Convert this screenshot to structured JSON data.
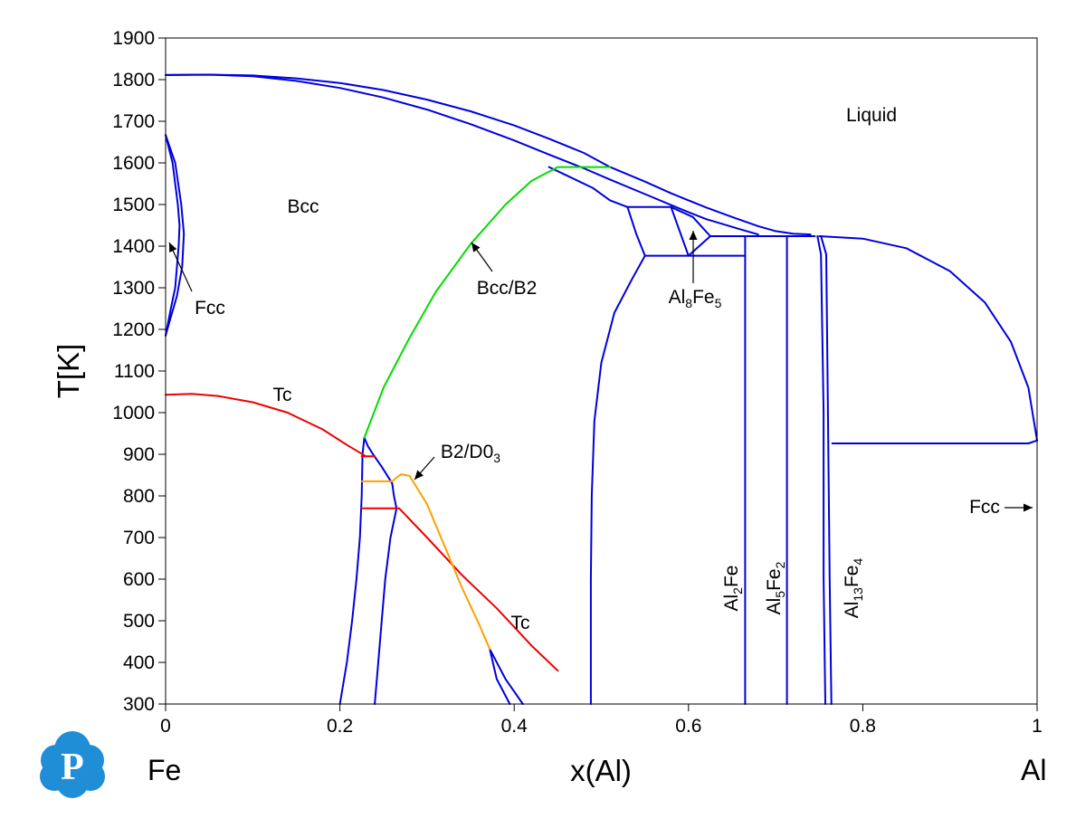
{
  "chart_data": {
    "type": "line",
    "title": "",
    "xlabel": "x(Al)",
    "ylabel": "T[K]",
    "xlim": [
      0,
      1
    ],
    "ylim": [
      300,
      1900
    ],
    "x_ticks": [
      "0",
      "0.2",
      "0.4",
      "0.6",
      "0.8",
      "1"
    ],
    "y_ticks": [
      "300",
      "400",
      "500",
      "600",
      "700",
      "800",
      "900",
      "1000",
      "1100",
      "1200",
      "1300",
      "1400",
      "1500",
      "1600",
      "1700",
      "1800",
      "1900"
    ],
    "x_end_labels": {
      "left": "Fe",
      "right": "Al"
    },
    "grid": false,
    "colors": {
      "phase_boundary": "#0000dd",
      "curie": "#ee0000",
      "bcc_b2": "#00dd00",
      "b2_d03": "#ffa000",
      "axis": "#000000"
    },
    "annotations": [
      {
        "id": "liquid",
        "text": "Liquid"
      },
      {
        "id": "bcc",
        "text": "Bcc"
      },
      {
        "id": "fcc-left",
        "text": "Fcc"
      },
      {
        "id": "bcc-b2",
        "text": "Bcc/B2"
      },
      {
        "id": "tc-upper",
        "text": "Tc"
      },
      {
        "id": "tc-lower",
        "text": "Tc"
      },
      {
        "id": "b2-d03",
        "text": "B2/D0",
        "sub": "3"
      },
      {
        "id": "al8fe5",
        "parts": [
          [
            "Al",
            ""
          ],
          [
            "8",
            "sub"
          ],
          [
            "Fe",
            ""
          ],
          [
            "5",
            "sub"
          ]
        ]
      },
      {
        "id": "al2fe",
        "parts": [
          [
            "Al",
            ""
          ],
          [
            "2",
            "sub"
          ],
          [
            "Fe",
            ""
          ]
        ]
      },
      {
        "id": "al5fe2",
        "parts": [
          [
            "Al",
            ""
          ],
          [
            "5",
            "sub"
          ],
          [
            "Fe",
            ""
          ],
          [
            "2",
            "sub"
          ]
        ]
      },
      {
        "id": "al13fe4",
        "parts": [
          [
            "Al",
            ""
          ],
          [
            "13",
            "sub"
          ],
          [
            "Fe",
            ""
          ],
          [
            "4",
            "sub"
          ]
        ]
      },
      {
        "id": "fcc-right",
        "text": "Fcc"
      }
    ],
    "series": [
      {
        "color": "phase_boundary",
        "points": [
          [
            0,
            1811
          ],
          [
            0.05,
            1812
          ],
          [
            0.1,
            1808
          ],
          [
            0.15,
            1797
          ],
          [
            0.2,
            1780
          ],
          [
            0.25,
            1757
          ],
          [
            0.3,
            1728
          ],
          [
            0.35,
            1693
          ],
          [
            0.4,
            1654
          ],
          [
            0.44,
            1620
          ],
          [
            0.48,
            1587
          ],
          [
            0.51,
            1560
          ],
          [
            0.55,
            1525
          ],
          [
            0.59,
            1490
          ],
          [
            0.62,
            1465
          ],
          [
            0.66,
            1440
          ],
          [
            0.68,
            1428
          ]
        ]
      },
      {
        "color": "phase_boundary",
        "points": [
          [
            0,
            1811
          ],
          [
            0.05,
            1812
          ],
          [
            0.1,
            1810
          ],
          [
            0.15,
            1803
          ],
          [
            0.2,
            1792
          ],
          [
            0.25,
            1775
          ],
          [
            0.3,
            1752
          ],
          [
            0.35,
            1724
          ],
          [
            0.4,
            1690
          ],
          [
            0.44,
            1658
          ],
          [
            0.48,
            1624
          ],
          [
            0.51,
            1590
          ],
          [
            0.55,
            1555
          ],
          [
            0.58,
            1527
          ],
          [
            0.6,
            1510
          ],
          [
            0.62,
            1493
          ],
          [
            0.65,
            1470
          ],
          [
            0.68,
            1448
          ],
          [
            0.7,
            1436
          ],
          [
            0.72,
            1430
          ],
          [
            0.74,
            1428
          ]
        ]
      },
      {
        "color": "phase_boundary",
        "points": [
          [
            0.75,
            1424
          ],
          [
            0.8,
            1418
          ],
          [
            0.85,
            1395
          ],
          [
            0.9,
            1340
          ],
          [
            0.94,
            1265
          ],
          [
            0.97,
            1170
          ],
          [
            0.99,
            1060
          ],
          [
            1.0,
            933
          ]
        ]
      },
      {
        "color": "phase_boundary",
        "points": [
          [
            0.44,
            1590
          ],
          [
            0.46,
            1570
          ],
          [
            0.49,
            1540
          ],
          [
            0.51,
            1510
          ],
          [
            0.53,
            1494
          ]
        ]
      },
      {
        "color": "phase_boundary",
        "points": [
          [
            0.53,
            1494
          ],
          [
            0.58,
            1494
          ]
        ]
      },
      {
        "color": "phase_boundary",
        "points": [
          [
            0.53,
            1494
          ],
          [
            0.54,
            1430
          ],
          [
            0.55,
            1377
          ]
        ]
      },
      {
        "color": "phase_boundary",
        "points": [
          [
            0.55,
            1377
          ],
          [
            0.665,
            1377
          ]
        ]
      },
      {
        "color": "phase_boundary",
        "points": [
          [
            0.58,
            1494
          ],
          [
            0.6,
            1377
          ]
        ]
      },
      {
        "color": "phase_boundary",
        "points": [
          [
            0.58,
            1494
          ],
          [
            0.605,
            1470
          ],
          [
            0.625,
            1424
          ]
        ]
      },
      {
        "color": "phase_boundary",
        "points": [
          [
            0.6,
            1377
          ],
          [
            0.625,
            1424
          ]
        ]
      },
      {
        "color": "phase_boundary",
        "points": [
          [
            0.625,
            1424
          ],
          [
            0.745,
            1424
          ]
        ]
      },
      {
        "color": "phase_boundary",
        "points": [
          [
            0.55,
            1377
          ],
          [
            0.535,
            1320
          ],
          [
            0.515,
            1240
          ],
          [
            0.5,
            1120
          ],
          [
            0.492,
            980
          ],
          [
            0.489,
            800
          ],
          [
            0.488,
            600
          ],
          [
            0.488,
            300
          ]
        ]
      },
      {
        "color": "phase_boundary",
        "points": [
          [
            0.665,
            1424
          ],
          [
            0.665,
            300
          ]
        ]
      },
      {
        "color": "phase_boundary",
        "points": [
          [
            0.713,
            1424
          ],
          [
            0.713,
            300
          ]
        ]
      },
      {
        "color": "phase_boundary",
        "points": [
          [
            0.748,
            1424
          ],
          [
            0.752,
            1380
          ],
          [
            0.755,
            1000
          ],
          [
            0.755,
            600
          ],
          [
            0.757,
            300
          ]
        ]
      },
      {
        "color": "phase_boundary",
        "points": [
          [
            0.752,
            1424
          ],
          [
            0.758,
            1380
          ],
          [
            0.76,
            1000
          ],
          [
            0.762,
            600
          ],
          [
            0.764,
            300
          ]
        ]
      },
      {
        "color": "phase_boundary",
        "points": [
          [
            0.765,
            926
          ],
          [
            0.99,
            926
          ]
        ]
      },
      {
        "color": "phase_boundary",
        "points": [
          [
            0.99,
            926
          ],
          [
            1.0,
            933
          ]
        ]
      },
      {
        "color": "phase_boundary",
        "points": [
          [
            0,
            1667
          ],
          [
            0.008,
            1600
          ],
          [
            0.014,
            1500
          ],
          [
            0.016,
            1450
          ],
          [
            0.015,
            1400
          ],
          [
            0.011,
            1300
          ],
          [
            0.006,
            1250
          ],
          [
            0,
            1185
          ]
        ]
      },
      {
        "color": "phase_boundary",
        "points": [
          [
            0,
            1667
          ],
          [
            0.011,
            1600
          ],
          [
            0.018,
            1500
          ],
          [
            0.021,
            1430
          ],
          [
            0.019,
            1350
          ],
          [
            0.013,
            1280
          ],
          [
            0.006,
            1230
          ],
          [
            0,
            1185
          ]
        ]
      },
      {
        "color": "phase_boundary",
        "points": [
          [
            0.228,
            940
          ],
          [
            0.232,
            920
          ],
          [
            0.238,
            900
          ],
          [
            0.248,
            870
          ],
          [
            0.26,
            830
          ]
        ]
      },
      {
        "color": "phase_boundary",
        "points": [
          [
            0.228,
            940
          ],
          [
            0.226,
            900
          ],
          [
            0.225,
            800
          ],
          [
            0.223,
            700
          ],
          [
            0.219,
            600
          ],
          [
            0.214,
            500
          ],
          [
            0.208,
            400
          ],
          [
            0.2,
            300
          ]
        ]
      },
      {
        "color": "phase_boundary",
        "points": [
          [
            0.26,
            830
          ],
          [
            0.262,
            800
          ],
          [
            0.265,
            770
          ],
          [
            0.258,
            700
          ],
          [
            0.252,
            600
          ],
          [
            0.248,
            500
          ],
          [
            0.244,
            400
          ],
          [
            0.24,
            300
          ]
        ]
      },
      {
        "color": "phase_boundary",
        "points": [
          [
            0.372,
            432
          ],
          [
            0.39,
            360
          ],
          [
            0.41,
            300
          ]
        ]
      },
      {
        "color": "phase_boundary",
        "points": [
          [
            0.372,
            432
          ],
          [
            0.38,
            360
          ],
          [
            0.395,
            300
          ]
        ]
      },
      {
        "color": "bcc_b2",
        "points": [
          [
            0.228,
            940
          ],
          [
            0.25,
            1060
          ],
          [
            0.28,
            1180
          ],
          [
            0.31,
            1290
          ],
          [
            0.35,
            1405
          ],
          [
            0.39,
            1500
          ],
          [
            0.42,
            1557
          ],
          [
            0.45,
            1590
          ]
        ]
      },
      {
        "color": "bcc_b2",
        "points": [
          [
            0.45,
            1590
          ],
          [
            0.51,
            1590
          ]
        ]
      },
      {
        "color": "curie",
        "points": [
          [
            0,
            1043
          ],
          [
            0.03,
            1045
          ],
          [
            0.06,
            1040
          ],
          [
            0.1,
            1025
          ],
          [
            0.14,
            1000
          ],
          [
            0.18,
            960
          ],
          [
            0.21,
            920
          ],
          [
            0.23,
            895
          ]
        ]
      },
      {
        "color": "curie",
        "points": [
          [
            0.225,
            895
          ],
          [
            0.24,
            895
          ]
        ]
      },
      {
        "color": "curie",
        "points": [
          [
            0.225,
            770
          ],
          [
            0.268,
            770
          ]
        ]
      },
      {
        "color": "curie",
        "points": [
          [
            0.268,
            770
          ],
          [
            0.3,
            700
          ],
          [
            0.34,
            610
          ],
          [
            0.38,
            530
          ],
          [
            0.42,
            440
          ],
          [
            0.45,
            380
          ]
        ]
      },
      {
        "color": "b2_d03",
        "points": [
          [
            0.225,
            835
          ],
          [
            0.26,
            835
          ]
        ]
      },
      {
        "color": "b2_d03",
        "points": [
          [
            0.26,
            835
          ],
          [
            0.27,
            852
          ],
          [
            0.28,
            848
          ],
          [
            0.3,
            780
          ],
          [
            0.32,
            680
          ],
          [
            0.34,
            580
          ],
          [
            0.36,
            490
          ],
          [
            0.372,
            432
          ]
        ]
      }
    ]
  },
  "logo": {
    "letter": "P",
    "color": "#1f8ed6"
  }
}
